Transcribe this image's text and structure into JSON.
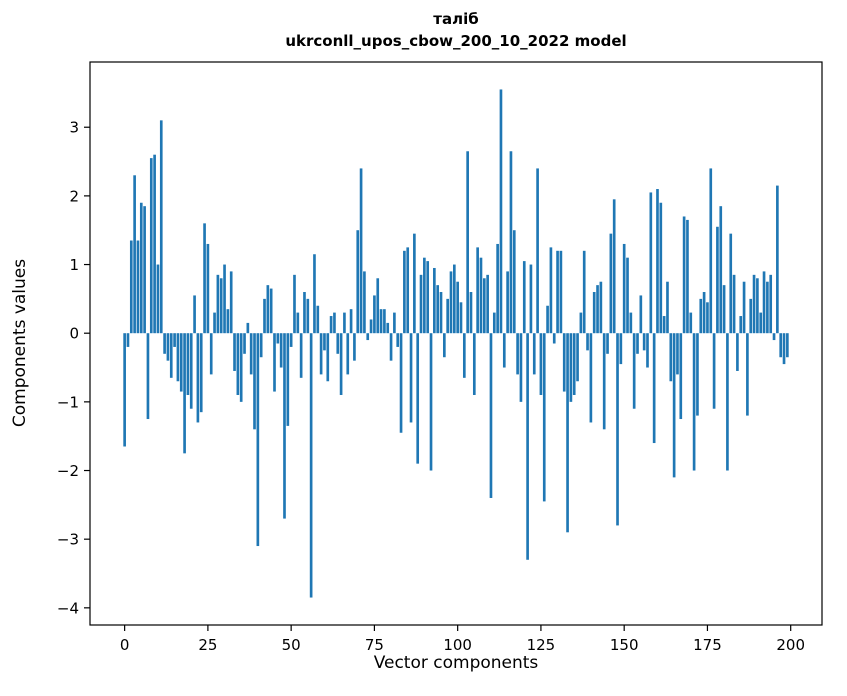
{
  "title": {
    "line1": "таліб",
    "line2": "ukrconll_upos_cbow_200_10_2022 model"
  },
  "chart_data": {
    "type": "bar",
    "title": "таліб\nukrconll_upos_cbow_200_10_2022 model",
    "xlabel": "Vector components",
    "ylabel": "Components values",
    "xlim": [
      -10.4,
      209.4
    ],
    "ylim": [
      -4.25,
      3.95
    ],
    "x_ticks": [
      0,
      25,
      50,
      75,
      100,
      125,
      150,
      175,
      200
    ],
    "y_ticks": [
      -4,
      -3,
      -2,
      -1,
      0,
      1,
      2,
      3
    ],
    "bar_color": "#1f77b4",
    "bar_width": 0.8,
    "grid": false,
    "legend": "none",
    "values": [
      -1.65,
      -0.2,
      1.35,
      2.3,
      1.35,
      1.9,
      1.85,
      -1.25,
      2.55,
      2.6,
      1.0,
      3.1,
      -0.3,
      -0.4,
      -0.65,
      -0.2,
      -0.7,
      -0.85,
      -1.75,
      -0.9,
      -1.1,
      0.55,
      -1.3,
      -1.15,
      1.6,
      1.3,
      -0.6,
      0.3,
      0.85,
      0.8,
      1.0,
      0.35,
      0.9,
      -0.55,
      -0.9,
      -1.0,
      -0.3,
      0.15,
      -0.6,
      -1.4,
      -3.1,
      -0.35,
      0.5,
      0.7,
      0.65,
      -0.85,
      -0.15,
      -0.5,
      -2.7,
      -1.35,
      -0.2,
      0.85,
      0.3,
      -0.65,
      0.6,
      0.5,
      -3.85,
      1.15,
      0.4,
      -0.6,
      -0.25,
      -0.7,
      0.25,
      0.3,
      -0.3,
      -0.9,
      0.3,
      -0.6,
      0.35,
      -0.4,
      1.5,
      2.4,
      0.9,
      -0.1,
      0.2,
      0.55,
      0.8,
      0.35,
      0.35,
      0.15,
      -0.4,
      0.3,
      -0.2,
      -1.45,
      1.2,
      1.25,
      -1.3,
      1.45,
      -1.9,
      0.85,
      1.1,
      1.05,
      -2.0,
      0.95,
      0.7,
      0.6,
      -0.35,
      0.5,
      0.9,
      1.0,
      0.75,
      0.45,
      -0.65,
      2.65,
      0.6,
      -0.9,
      1.25,
      1.1,
      0.8,
      0.85,
      -2.4,
      0.3,
      1.3,
      3.55,
      -0.5,
      0.9,
      2.65,
      1.5,
      -0.6,
      -1.0,
      1.05,
      -3.3,
      1.0,
      -0.6,
      2.4,
      -0.9,
      -2.45,
      0.4,
      1.25,
      -0.15,
      1.2,
      1.2,
      -0.85,
      -2.9,
      -1.0,
      -0.9,
      -0.7,
      0.3,
      1.2,
      -0.25,
      -1.3,
      0.6,
      0.7,
      0.75,
      -1.4,
      -0.3,
      1.45,
      1.95,
      -2.8,
      -0.45,
      1.3,
      1.1,
      0.3,
      -1.1,
      -0.3,
      0.55,
      -0.25,
      -0.5,
      2.05,
      -1.6,
      2.1,
      1.9,
      0.25,
      0.75,
      -0.7,
      -2.1,
      -0.6,
      -1.25,
      1.7,
      1.65,
      0.3,
      -2.0,
      -1.2,
      0.5,
      0.6,
      0.45,
      2.4,
      -1.1,
      1.55,
      1.85,
      0.7,
      -2.0,
      1.45,
      0.85,
      -0.55,
      0.25,
      0.75,
      -1.2,
      0.5,
      0.85,
      0.8,
      0.3,
      0.9,
      0.75,
      0.85,
      -0.1,
      2.15,
      -0.35,
      -0.45,
      -0.35
    ]
  }
}
